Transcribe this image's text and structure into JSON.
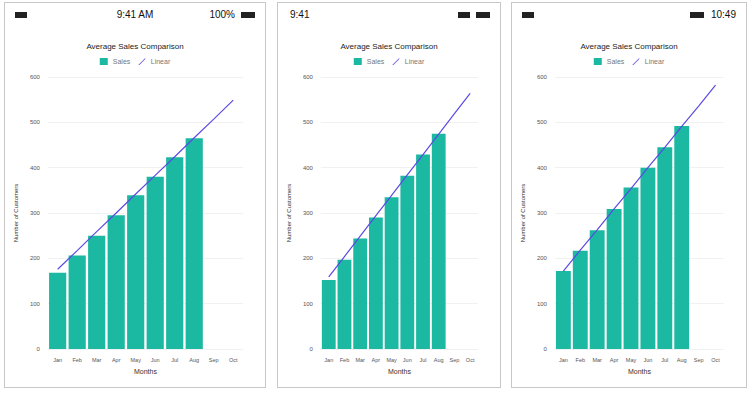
{
  "chart_data": [
    {
      "type": "bar",
      "title": "Average Sales Comparison",
      "x_label": "Months",
      "y_label": "Number of Customers",
      "categories": [
        "Jan",
        "Feb",
        "Mar",
        "Apr",
        "May",
        "Jun",
        "Jul",
        "Aug",
        "Sep",
        "Oct"
      ],
      "series": [
        {
          "name": "Sales",
          "type": "bar",
          "color": "#1bb8a2",
          "values": [
            168,
            206,
            250,
            295,
            339,
            380,
            423,
            465,
            null,
            null
          ]
        },
        {
          "name": "Linear",
          "type": "line",
          "color": "#5a4ae3",
          "values": [
            176,
            217,
            259,
            300,
            342,
            383,
            424,
            466,
            507,
            549
          ]
        }
      ],
      "ylim": [
        0,
        600
      ],
      "yticks": [
        0,
        100,
        200,
        300,
        400,
        500,
        600
      ],
      "grid": true,
      "legend": "top"
    },
    {
      "type": "bar",
      "title": "Average Sales Comparison",
      "x_label": "Months",
      "y_label": "Number of Customers",
      "categories": [
        "Jan",
        "Feb",
        "Mar",
        "Apr",
        "May",
        "Jun",
        "Jul",
        "Aug",
        "Sep",
        "Oct"
      ],
      "series": [
        {
          "name": "Sales",
          "type": "bar",
          "color": "#1bb8a2",
          "values": [
            152,
            197,
            244,
            290,
            335,
            382,
            429,
            475,
            null,
            null
          ]
        },
        {
          "name": "Linear",
          "type": "line",
          "color": "#5a4ae3",
          "values": [
            159,
            204,
            249,
            294,
            339,
            384,
            429,
            474,
            519,
            564
          ]
        }
      ],
      "ylim": [
        0,
        600
      ],
      "yticks": [
        0,
        100,
        200,
        300,
        400,
        500,
        600
      ],
      "grid": true,
      "legend": "top"
    },
    {
      "type": "bar",
      "title": "Average Sales Comparison",
      "x_label": "Months",
      "y_label": "Number of Customers",
      "categories": [
        "Jan",
        "Feb",
        "Mar",
        "Apr",
        "May",
        "Jun",
        "Jul",
        "Aug",
        "Sep",
        "Oct"
      ],
      "series": [
        {
          "name": "Sales",
          "type": "bar",
          "color": "#1bb8a2",
          "values": [
            172,
            217,
            262,
            309,
            356,
            400,
            445,
            492,
            null,
            null
          ]
        },
        {
          "name": "Linear",
          "type": "line",
          "color": "#5a4ae3",
          "values": [
            172,
            218,
            263,
            309,
            354,
            400,
            445,
            491,
            536,
            582
          ]
        }
      ],
      "ylim": [
        0,
        600
      ],
      "yticks": [
        0,
        100,
        200,
        300,
        400,
        500,
        600
      ],
      "grid": true,
      "legend": "top"
    }
  ],
  "status_bars": [
    {
      "time": "9:41 AM",
      "battery": "100%"
    },
    {
      "time": "9:41"
    },
    {
      "time": "10:49"
    }
  ]
}
